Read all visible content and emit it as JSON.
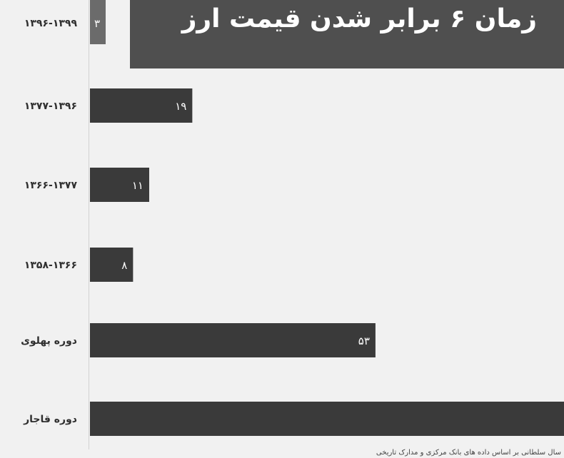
{
  "chart_data": {
    "type": "bar",
    "orientation": "horizontal",
    "title": "زمان ۶ برابر شدن قیمت ارز",
    "categories": [
      "۱۳۹۶-۱۳۹۹",
      "۱۳۷۷-۱۳۹۶",
      "۱۳۶۶-۱۳۷۷",
      "۱۳۵۸-۱۳۶۶",
      "دوره پهلوی",
      "دوره قاجار"
    ],
    "values": [
      3,
      19,
      11,
      8,
      53,
      90
    ],
    "value_labels": [
      "۳",
      "۱۹",
      "۱۱",
      "۸",
      "۵۳",
      ""
    ],
    "xlim": [
      0,
      88
    ],
    "source": "سال سلطانی بر اساس داده های بانک مرکزی و مدارک تاریخی",
    "colors": {
      "bar": "#3a3a3a",
      "first_bar": "#6b6b6b",
      "banner": "#4f4f4f"
    }
  }
}
